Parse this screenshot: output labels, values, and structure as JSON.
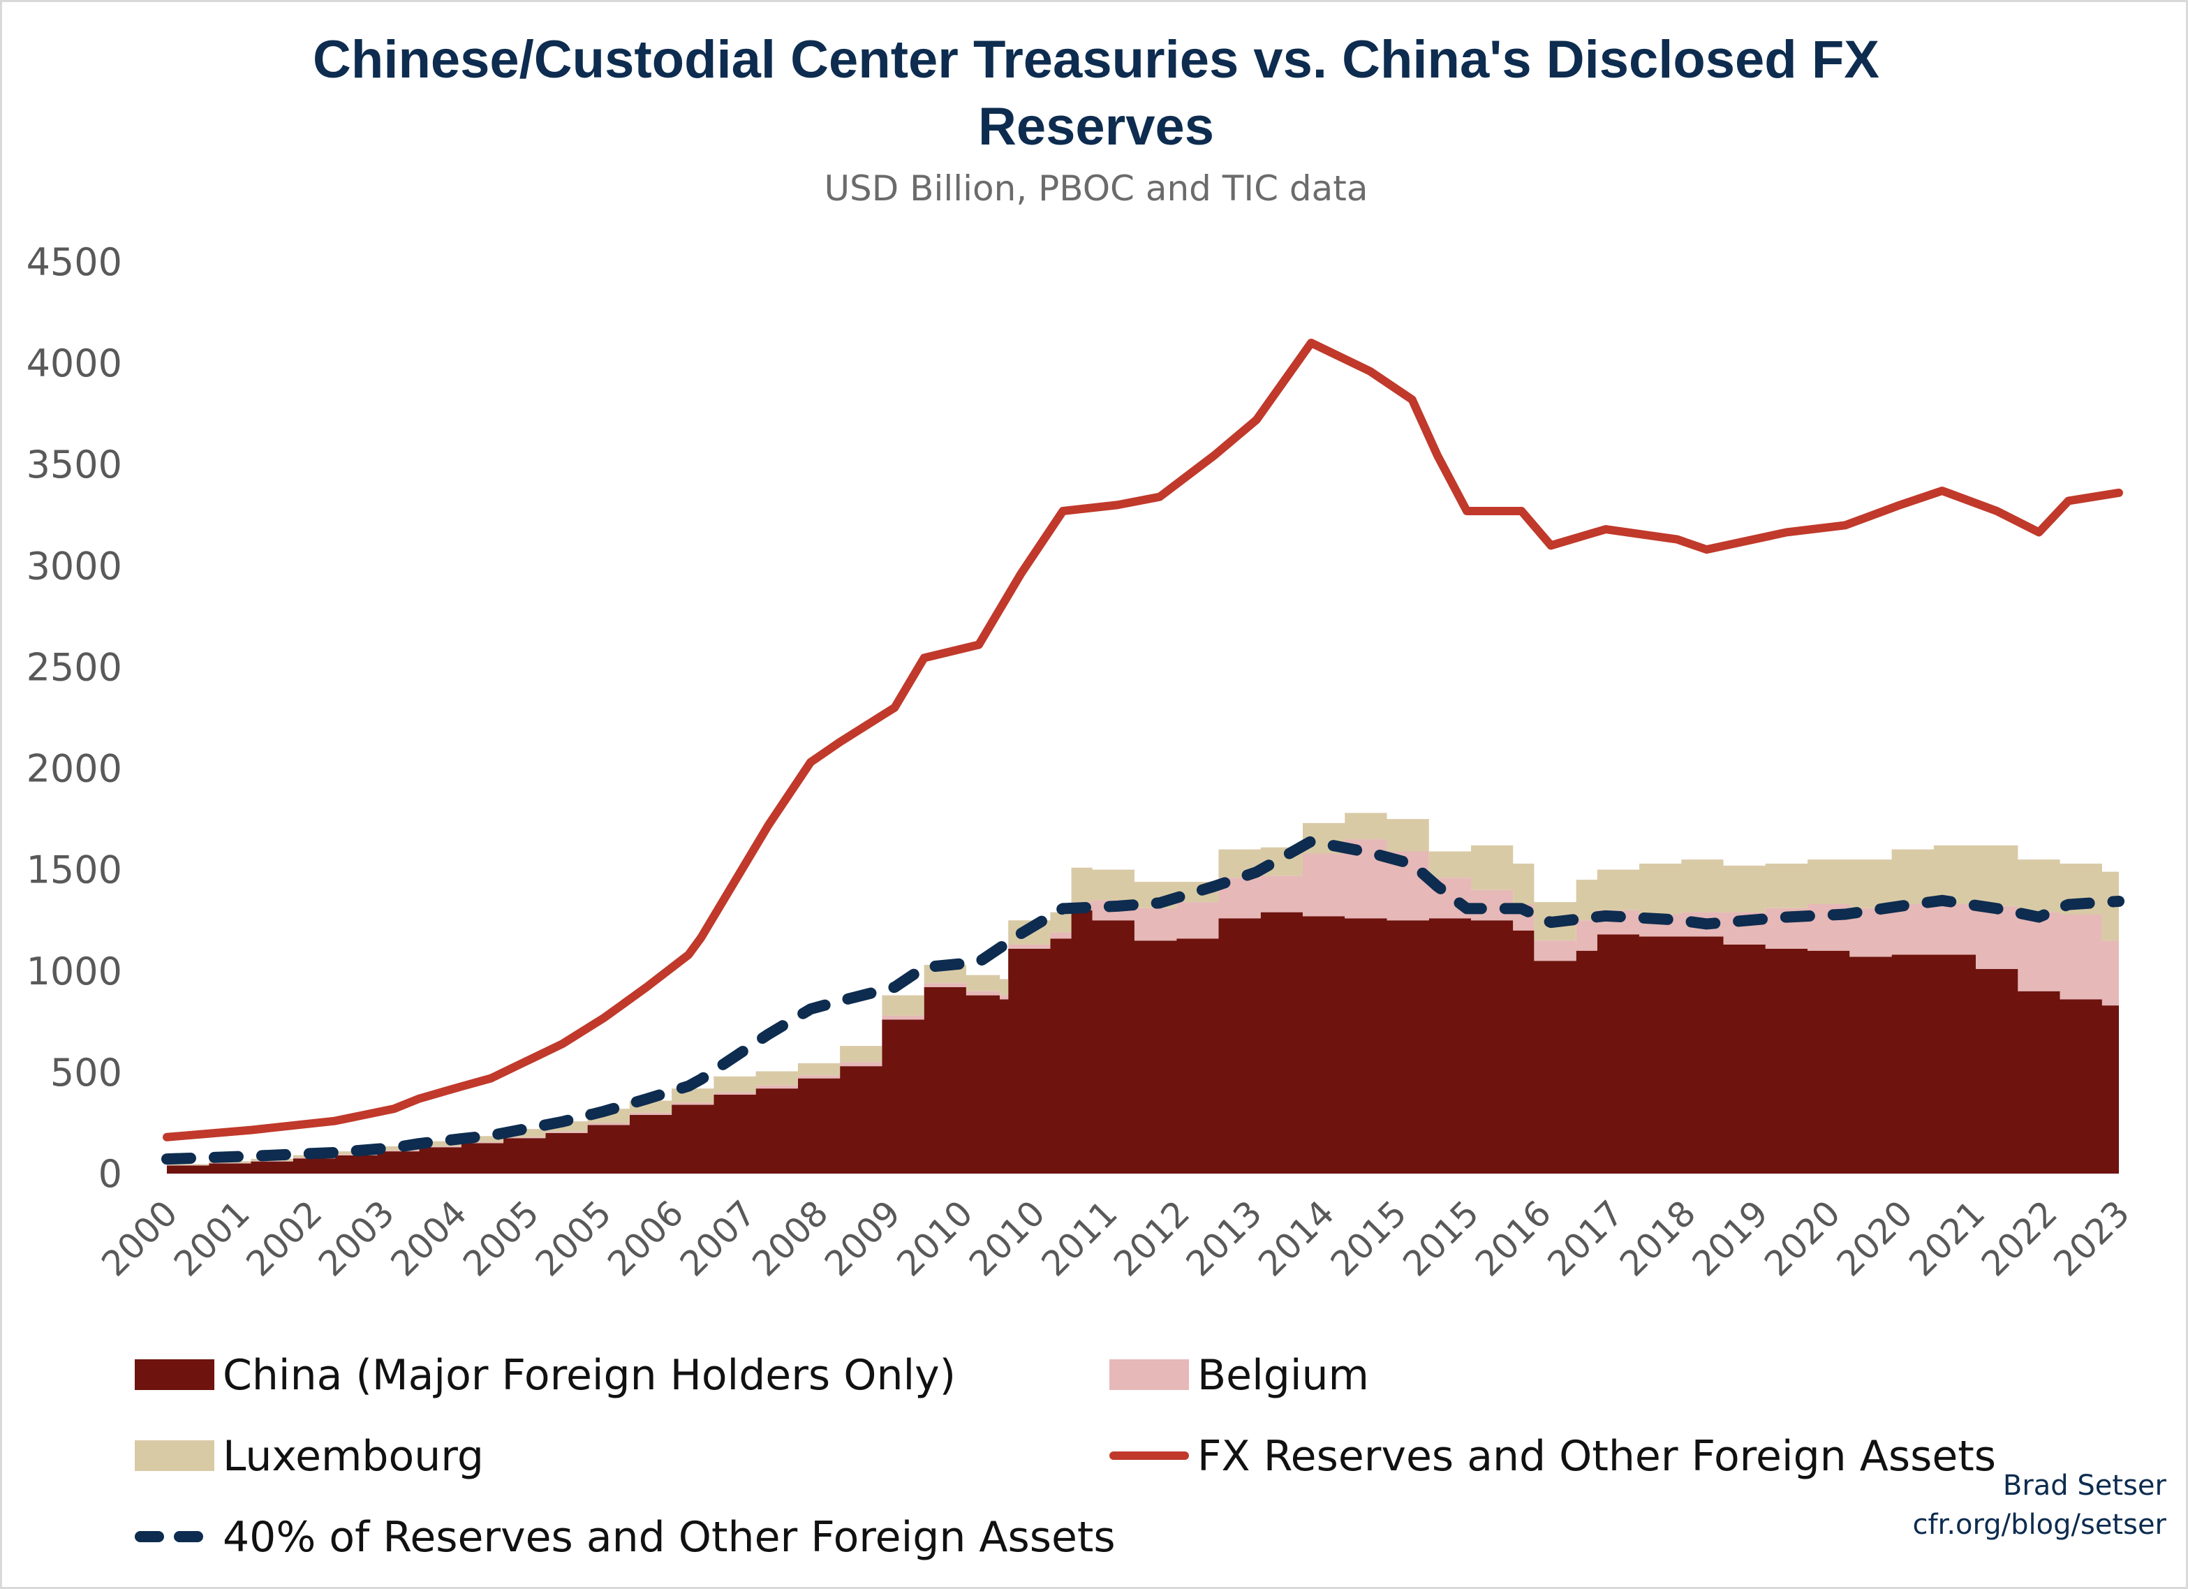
{
  "chart_data": {
    "type": "area",
    "title": "Chinese/Custodial Center Treasuries vs. China's Disclosed FX Reserves",
    "title_lines": [
      "Chinese/Custodial Center Treasuries vs. China's Disclosed FX",
      "Reserves"
    ],
    "subtitle": "USD Billion, PBOC and TIC data",
    "xlabel": "",
    "ylabel": "",
    "ylim": [
      0,
      4500
    ],
    "yticks": [
      0,
      500,
      1000,
      1500,
      2000,
      2500,
      3000,
      3500,
      4000,
      4500
    ],
    "xlim": [
      2000.0,
      2023.2
    ],
    "xtick_labels": [
      "2000",
      "2001",
      "2002",
      "2003",
      "2004",
      "2005",
      "2005",
      "2006",
      "2007",
      "2008",
      "2009",
      "2010",
      "2010",
      "2011",
      "2012",
      "2013",
      "2014",
      "2015",
      "2015",
      "2016",
      "2017",
      "2018",
      "2019",
      "2020",
      "2020",
      "2021",
      "2022",
      "2023"
    ],
    "grid": false,
    "legend_placement": "bottom",
    "stacked_x": [
      2000.0,
      2000.5,
      2001.0,
      2001.5,
      2002.0,
      2002.5,
      2003.0,
      2003.5,
      2004.0,
      2004.5,
      2005.0,
      2005.5,
      2006.0,
      2006.5,
      2007.0,
      2007.5,
      2008.0,
      2008.5,
      2009.0,
      2009.5,
      2009.9,
      2010.0,
      2010.5,
      2010.75,
      2011.0,
      2011.5,
      2012.0,
      2012.5,
      2013.0,
      2013.5,
      2014.0,
      2014.5,
      2015.0,
      2015.5,
      2016.0,
      2016.25,
      2016.75,
      2017.0,
      2017.5,
      2018.0,
      2018.5,
      2019.0,
      2019.5,
      2020.0,
      2020.5,
      2021.0,
      2021.5,
      2022.0,
      2022.5,
      2023.0,
      2023.2
    ],
    "stacked_series": [
      {
        "name": "China (Major Foreign Holders Only)",
        "color": "#6e130e",
        "values": [
          40,
          50,
          60,
          75,
          90,
          110,
          130,
          150,
          175,
          200,
          240,
          290,
          340,
          390,
          420,
          470,
          530,
          760,
          920,
          880,
          860,
          1110,
          1160,
          1300,
          1250,
          1150,
          1160,
          1260,
          1290,
          1270,
          1260,
          1250,
          1260,
          1250,
          1200,
          1050,
          1100,
          1180,
          1170,
          1170,
          1130,
          1110,
          1100,
          1070,
          1080,
          1080,
          1010,
          900,
          860,
          830,
          810
        ]
      },
      {
        "name": "Belgium",
        "color": "#e6b8b7",
        "values": [
          2,
          3,
          3,
          4,
          5,
          5,
          5,
          5,
          5,
          8,
          10,
          10,
          10,
          10,
          15,
          15,
          20,
          20,
          20,
          20,
          20,
          20,
          30,
          40,
          100,
          160,
          180,
          200,
          180,
          310,
          390,
          340,
          200,
          150,
          130,
          100,
          150,
          120,
          110,
          120,
          160,
          200,
          230,
          240,
          250,
          250,
          310,
          390,
          420,
          320,
          320
        ]
      },
      {
        "name": "Luxembourg",
        "color": "#d9caa6",
        "values": [
          5,
          8,
          10,
          12,
          15,
          20,
          25,
          30,
          40,
          50,
          70,
          60,
          70,
          80,
          70,
          60,
          80,
          100,
          90,
          80,
          80,
          120,
          100,
          170,
          150,
          130,
          100,
          140,
          140,
          150,
          130,
          160,
          130,
          220,
          200,
          190,
          200,
          200,
          250,
          260,
          230,
          220,
          220,
          240,
          270,
          290,
          300,
          260,
          250,
          340,
          360
        ]
      }
    ],
    "line_x": [
      2000.0,
      2001.0,
      2002.0,
      2002.7,
      2003.0,
      2003.5,
      2003.85,
      2004.2,
      2004.7,
      2005.2,
      2005.7,
      2006.2,
      2006.35,
      2007.15,
      2007.65,
      2008.0,
      2008.65,
      2009.0,
      2009.65,
      2010.15,
      2010.65,
      2011.3,
      2011.8,
      2012.45,
      2012.95,
      2013.6,
      2014.3,
      2014.8,
      2015.1,
      2015.45,
      2016.1,
      2016.45,
      2017.1,
      2017.95,
      2018.3,
      2019.25,
      2019.95,
      2020.6,
      2021.1,
      2021.75,
      2022.25,
      2022.6,
      2023.2
    ],
    "line_series": [
      {
        "name": "FX Reserves and Other Foreign Assets",
        "color": "#c0392b",
        "style": "solid",
        "values": [
          180,
          215,
          260,
          320,
          370,
          430,
          470,
          540,
          640,
          770,
          920,
          1080,
          1165,
          1720,
          2030,
          2130,
          2300,
          2545,
          2610,
          2960,
          3270,
          3300,
          3340,
          3545,
          3720,
          4100,
          3960,
          3820,
          3545,
          3270,
          3270,
          3100,
          3180,
          3130,
          3080,
          3165,
          3200,
          3300,
          3370,
          3270,
          3165,
          3320,
          3360
        ]
      },
      {
        "name": "40% of Reserves and Other Foreign Assets",
        "color": "#0d2c4f",
        "style": "dashed",
        "values": [
          72,
          86,
          104,
          128,
          148,
          172,
          188,
          216,
          256,
          308,
          368,
          432,
          466,
          688,
          812,
          852,
          920,
          1018,
          1044,
          1184,
          1308,
          1320,
          1336,
          1418,
          1488,
          1640,
          1584,
          1528,
          1418,
          1308,
          1308,
          1240,
          1272,
          1252,
          1232,
          1266,
          1280,
          1320,
          1348,
          1308,
          1266,
          1328,
          1344
        ]
      }
    ],
    "legend": [
      {
        "label": "China (Major Foreign Holders Only)",
        "kind": "box",
        "color": "#6e130e"
      },
      {
        "label": "Belgium",
        "kind": "box",
        "color": "#e6b8b7"
      },
      {
        "label": "Luxembourg",
        "kind": "box",
        "color": "#d9caa6"
      },
      {
        "label": "FX Reserves and Other Foreign Assets",
        "kind": "line",
        "color": "#c0392b"
      },
      {
        "label": "40% of Reserves and Other Foreign Assets",
        "kind": "dash",
        "color": "#0d2c4f"
      }
    ]
  },
  "credit": {
    "author": "Brad Setser",
    "site": "cfr.org/blog/setser"
  }
}
